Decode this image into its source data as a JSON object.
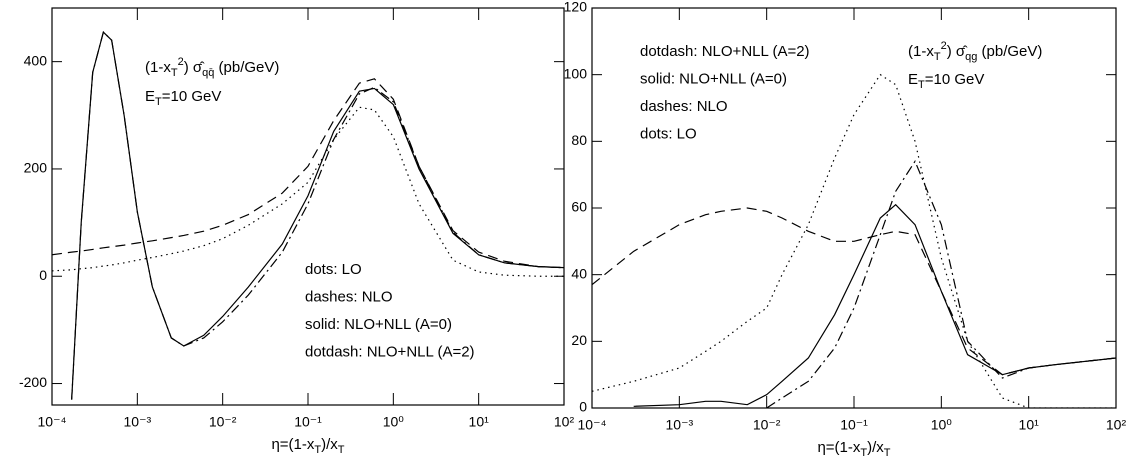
{
  "chart_data": [
    {
      "type": "line",
      "log_x": true,
      "annotation_lines": [
        [
          "(1-x",
          "T",
          "2",
          ") σ̂",
          "qq̄",
          " (pb/GeV)"
        ],
        [
          "E",
          "T",
          "=10 GeV"
        ]
      ],
      "xlabel": [
        "η=(1-x",
        "T",
        ")/x",
        "T"
      ],
      "x": [
        0.0001,
        0.00017,
        0.00022,
        0.0003,
        0.0004,
        0.0005,
        0.0007,
        0.001,
        0.0015,
        0.0025,
        0.0035,
        0.006,
        0.01,
        0.02,
        0.05,
        0.1,
        0.2,
        0.4,
        0.6,
        1,
        2,
        5,
        10,
        20,
        50,
        100
      ],
      "series": [
        {
          "name": "dots: LO",
          "color": "#000000",
          "style": "dotted",
          "values": [
            10,
            12,
            14,
            16,
            19,
            21,
            25,
            30,
            35,
            42,
            47,
            57,
            70,
            95,
            135,
            175,
            255,
            315,
            310,
            260,
            135,
            30,
            8,
            2,
            0,
            0
          ]
        },
        {
          "name": "dashes: NLO",
          "color": "#000000",
          "style": "dashed",
          "values": [
            40,
            45,
            47,
            50,
            53,
            55,
            58,
            62,
            66,
            72,
            76,
            84,
            95,
            115,
            155,
            205,
            290,
            360,
            368,
            330,
            205,
            85,
            45,
            28,
            18,
            16
          ]
        },
        {
          "name": "solid: NLO+NLL (A=0)",
          "color": "#000000",
          "style": "solid",
          "values": [
            null,
            -230,
            100,
            380,
            455,
            440,
            300,
            120,
            -20,
            -115,
            -130,
            -110,
            -75,
            -20,
            60,
            150,
            270,
            345,
            350,
            320,
            200,
            80,
            40,
            25,
            18,
            16
          ]
        },
        {
          "name": "dotdash: NLO+NLL (A=2)",
          "color": "#000000",
          "style": "dashdot",
          "values": [
            null,
            -230,
            100,
            380,
            455,
            440,
            300,
            120,
            -20,
            -115,
            -130,
            -115,
            -85,
            -35,
            45,
            135,
            255,
            340,
            352,
            325,
            205,
            82,
            40,
            25,
            18,
            16
          ]
        }
      ],
      "legend": "lower right",
      "xlim": [
        0.0001,
        100
      ],
      "xticks": [
        {
          "value": 0.0001,
          "label": "10⁻⁴"
        },
        {
          "value": 0.001,
          "label": "10⁻³"
        },
        {
          "value": 0.01,
          "label": "10⁻²"
        },
        {
          "value": 0.1,
          "label": "10⁻¹"
        },
        {
          "value": 1,
          "label": "10⁰"
        },
        {
          "value": 10,
          "label": "10¹"
        },
        {
          "value": 100,
          "label": "10²"
        }
      ],
      "ylim": [
        -240,
        500
      ],
      "yticks": [
        -200,
        0,
        200,
        400
      ]
    },
    {
      "type": "line",
      "log_x": true,
      "annotation_lines": [
        [
          "(1-x",
          "T",
          "2",
          ") σ̂",
          "qg",
          " (pb/GeV)"
        ],
        [
          "E",
          "T",
          "=10 GeV"
        ]
      ],
      "xlabel": [
        "η=(1-x",
        "T",
        ")/x",
        "T"
      ],
      "x": [
        0.0001,
        0.0003,
        0.001,
        0.002,
        0.003,
        0.006,
        0.01,
        0.015,
        0.03,
        0.06,
        0.1,
        0.2,
        0.3,
        0.5,
        1,
        2,
        5,
        10,
        20,
        100
      ],
      "series": [
        {
          "name": "dotdash: NLO+NLL (A=2)",
          "color": "#000000",
          "style": "dashdot",
          "values": [
            null,
            null,
            null,
            null,
            null,
            null,
            0,
            3,
            8,
            18,
            30,
            52,
            65,
            74,
            55,
            20,
            9,
            12,
            13,
            15
          ]
        },
        {
          "name": "solid: NLO+NLL (A=0)",
          "color": "#000000",
          "style": "solid",
          "values": [
            null,
            0.5,
            1,
            2,
            2,
            1,
            4,
            8,
            15,
            28,
            40,
            57,
            61,
            55,
            35,
            16,
            10,
            12,
            13,
            15
          ]
        },
        {
          "name": "dashes: NLO",
          "color": "#000000",
          "style": "dashed",
          "values": [
            37,
            47,
            55,
            58,
            59,
            60,
            59,
            57,
            53,
            50,
            50,
            52,
            53,
            52,
            35,
            18,
            10,
            12,
            13,
            15
          ]
        },
        {
          "name": "dots: LO",
          "color": "#000000",
          "style": "dotted",
          "values": [
            5,
            8,
            12,
            17,
            20,
            26,
            30,
            40,
            55,
            75,
            88,
            100,
            97,
            80,
            45,
            20,
            3,
            0,
            0,
            0
          ]
        }
      ],
      "legend": "upper left",
      "xlim": [
        0.0001,
        100
      ],
      "xticks": [
        {
          "value": 0.0001,
          "label": "10⁻⁴"
        },
        {
          "value": 0.001,
          "label": "10⁻³"
        },
        {
          "value": 0.01,
          "label": "10⁻²"
        },
        {
          "value": 0.1,
          "label": "10⁻¹"
        },
        {
          "value": 1,
          "label": "10⁰"
        },
        {
          "value": 10,
          "label": "10¹"
        },
        {
          "value": 100,
          "label": "10²"
        }
      ],
      "ylim": [
        0,
        120
      ],
      "yticks": [
        0,
        20,
        40,
        60,
        80,
        100,
        120
      ]
    }
  ]
}
